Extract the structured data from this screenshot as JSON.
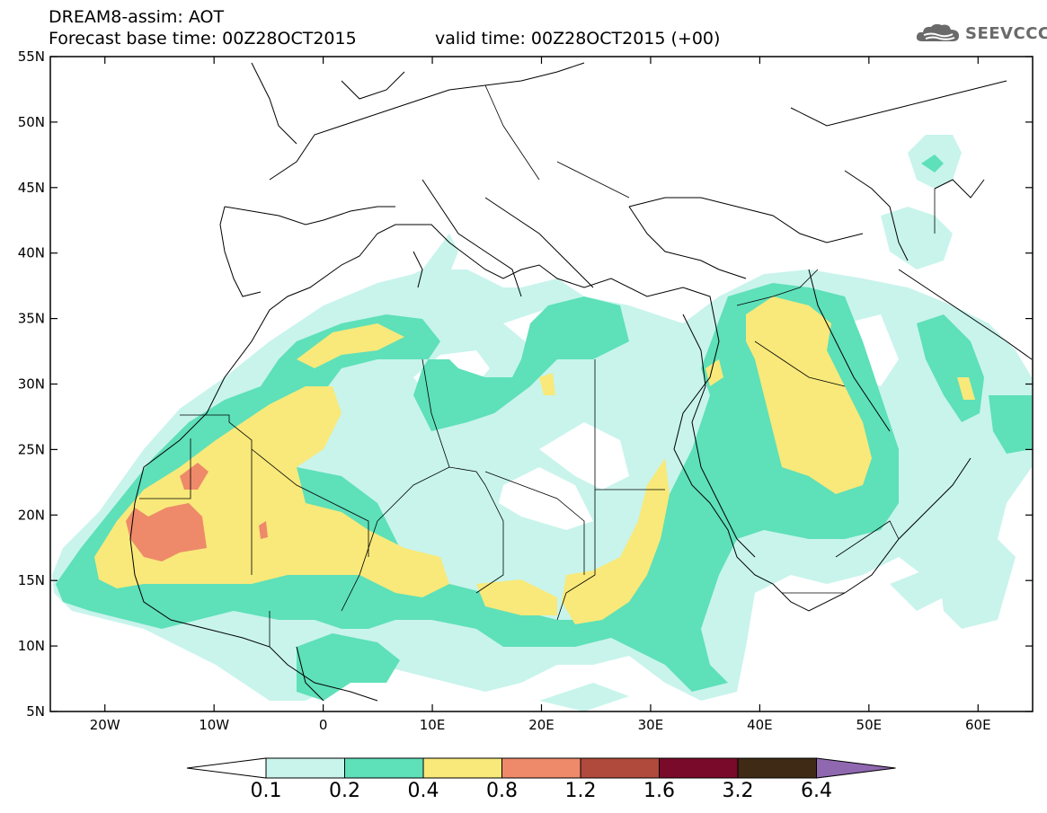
{
  "header": {
    "title": "DREAM8-assim: AOT",
    "base_time": "Forecast base time: 00Z28OCT2015",
    "valid_time": "valid time: 00Z28OCT2015 (+00)"
  },
  "logo": {
    "text": "SEEVCCC",
    "icon": "cloud-logo-icon",
    "color": "#6a6a6a"
  },
  "map": {
    "lon_range": [
      -25,
      65
    ],
    "lat_range": [
      5,
      55
    ],
    "lat_ticks": [
      "55N",
      "50N",
      "45N",
      "40N",
      "35N",
      "30N",
      "25N",
      "20N",
      "15N",
      "10N",
      "5N"
    ],
    "lon_ticks": [
      "20W",
      "10W",
      "0",
      "10E",
      "20E",
      "30E",
      "40E",
      "50E",
      "60E"
    ]
  },
  "legend": {
    "labels": [
      "0.1",
      "0.2",
      "0.4",
      "0.8",
      "1.2",
      "1.6",
      "3.2",
      "6.4"
    ],
    "colors": [
      "#ffffff",
      "#c8f4ec",
      "#5ee0b9",
      "#f8e97a",
      "#ee8a6a",
      "#b04a3c",
      "#7a0a2a",
      "#3e2a15",
      "#8f68b0"
    ]
  }
}
